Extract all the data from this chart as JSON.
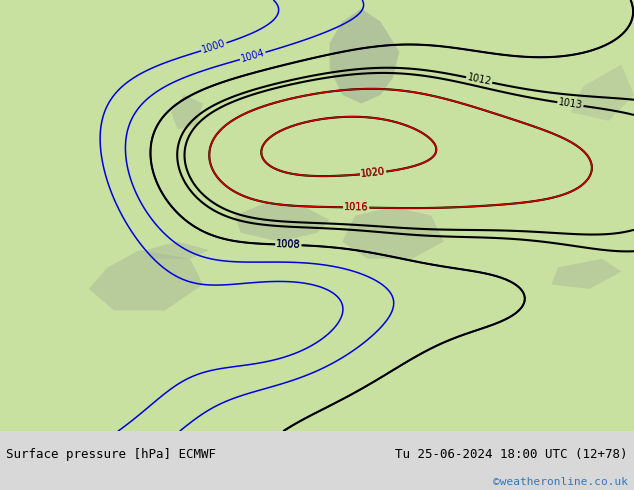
{
  "title_left": "Surface pressure [hPa] ECMWF",
  "title_right": "Tu 25-06-2024 18:00 UTC (12+78)",
  "watermark": "©weatheronline.co.uk",
  "bg_color": "#c8e0a0",
  "gray_color": "#a8b898",
  "bottom_bar_color": "#d8d8d8",
  "text_color": "#000000",
  "watermark_color": "#3377bb",
  "contour_blue": "#0000dd",
  "contour_red": "#cc0000",
  "contour_black": "#000000",
  "figsize": [
    6.34,
    4.9
  ],
  "dpi": 100
}
